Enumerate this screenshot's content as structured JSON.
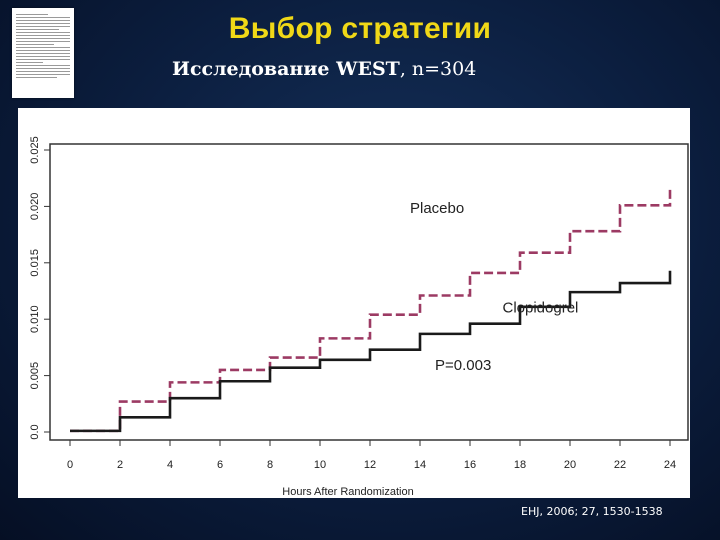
{
  "slide": {
    "title": "Выбор стратегии",
    "subtitle_bold": "Исследование WEST",
    "subtitle_rest": ", n=304",
    "citation": "EHJ, 2006; 27, 1530-1538"
  },
  "colors": {
    "background": "#0b1d3d",
    "title": "#f0d817",
    "placebo": "#9c3a63",
    "clopidogrel": "#1a1a1a"
  },
  "chart_data": {
    "type": "line",
    "step": true,
    "xlabel": "Hours After Randomization",
    "ylabel": "",
    "xlim": [
      0,
      24
    ],
    "ylim": [
      0,
      0.025
    ],
    "x_ticks": [
      "0",
      "2",
      "4",
      "6",
      "8",
      "10",
      "12",
      "14",
      "16",
      "18",
      "20",
      "22",
      "24"
    ],
    "y_ticks": [
      "0.0",
      "0.005",
      "0.010",
      "0.015",
      "0.020",
      "0.025"
    ],
    "grid": false,
    "series": [
      {
        "name": "Placebo",
        "style": "dashed",
        "x": [
          0,
          2,
          4,
          6,
          8,
          10,
          12,
          14,
          16,
          18,
          20,
          22,
          24
        ],
        "y": [
          0.0001,
          0.0027,
          0.0044,
          0.0055,
          0.0066,
          0.0083,
          0.0104,
          0.0121,
          0.0141,
          0.0159,
          0.0178,
          0.0201,
          0.0215
        ]
      },
      {
        "name": "Clopidogrel",
        "style": "solid",
        "x": [
          0,
          2,
          4,
          6,
          8,
          10,
          12,
          14,
          16,
          18,
          20,
          22,
          24
        ],
        "y": [
          0.0001,
          0.0013,
          0.003,
          0.0045,
          0.0057,
          0.0064,
          0.0073,
          0.0087,
          0.0096,
          0.0111,
          0.0124,
          0.0132,
          0.0143
        ]
      }
    ],
    "annotations": [
      {
        "text": "P=0.003",
        "x": 14.6,
        "y": 0.0055
      }
    ]
  }
}
